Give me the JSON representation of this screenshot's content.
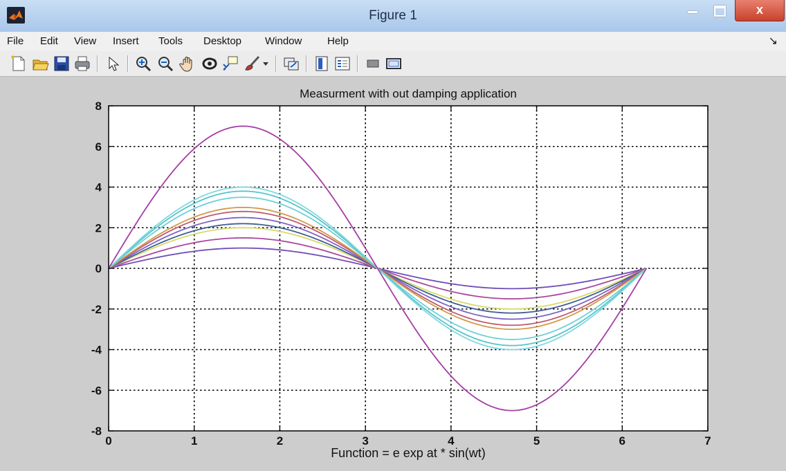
{
  "window": {
    "title": "Figure 1",
    "close_glyph": "x"
  },
  "menu": [
    "File",
    "Edit",
    "View",
    "Insert",
    "Tools",
    "Desktop",
    "Window",
    "Help"
  ],
  "menu_overflow_glyph": "↘",
  "toolbar_icons": [
    "new-figure-icon",
    "open-file-icon",
    "save-icon",
    "print-icon",
    "pointer-icon",
    "zoom-in-icon",
    "zoom-out-icon",
    "pan-icon",
    "rotate-3d-icon",
    "data-cursor-icon",
    "brush-icon",
    "brush-dropdown-icon",
    "link-plot-icon",
    "colorbar-icon",
    "legend-icon",
    "hide-plot-tools-icon",
    "show-plot-tools-icon"
  ],
  "chart_data": {
    "type": "line",
    "title": "Measurment with out damping application",
    "xlabel": "Function = e exp at * sin(wt)",
    "ylabel": "",
    "xlim": [
      0,
      7
    ],
    "ylim": [
      -8,
      8
    ],
    "xticks": [
      0,
      1,
      2,
      3,
      4,
      5,
      6,
      7
    ],
    "yticks": [
      -8,
      -6,
      -4,
      -2,
      0,
      2,
      4,
      6,
      8
    ],
    "grid": true,
    "x_range": [
      0,
      6.2832
    ],
    "series": [
      {
        "amplitude": 1.0,
        "color": "#6e4fb6"
      },
      {
        "amplitude": 1.5,
        "color": "#a8489e"
      },
      {
        "amplitude": 2.0,
        "color": "#d8d86a"
      },
      {
        "amplitude": 2.2,
        "color": "#3f5f95"
      },
      {
        "amplitude": 2.5,
        "color": "#7a62c4"
      },
      {
        "amplitude": 2.8,
        "color": "#c05a6e"
      },
      {
        "amplitude": 3.0,
        "color": "#d29a4a"
      },
      {
        "amplitude": 3.5,
        "color": "#6fcfd6"
      },
      {
        "amplitude": 3.8,
        "color": "#55c4cc"
      },
      {
        "amplitude": 4.0,
        "color": "#7fd8de"
      },
      {
        "amplitude": 7.0,
        "color": "#a33da3"
      }
    ]
  }
}
